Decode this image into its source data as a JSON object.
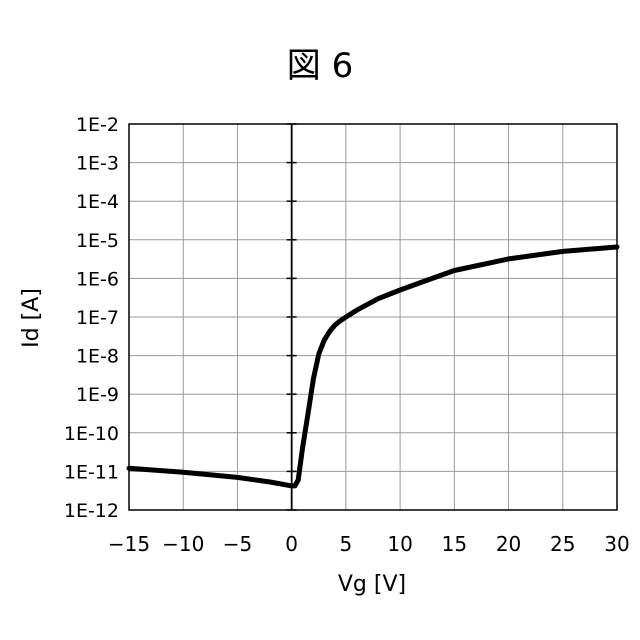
{
  "figure_label": "図 6",
  "chart_data": {
    "type": "line",
    "title": "図 6",
    "xlabel": "Vg [V]",
    "ylabel": "Id [A]",
    "xlim": [
      -15,
      30
    ],
    "ylim_exponent": [
      -12,
      -2
    ],
    "y_scale": "log",
    "grid": true,
    "x_ticks": [
      "−15",
      "−10",
      "−5",
      "0",
      "5",
      "10",
      "15",
      "20",
      "25",
      "30"
    ],
    "y_ticks": [
      "1E-12",
      "1E-11",
      "1E-10",
      "1E-9",
      "1E-8",
      "1E-7",
      "1E-6",
      "1E-5",
      "1E-4",
      "1E-3",
      "1E-2"
    ],
    "series": [
      {
        "x": [
          -15,
          -10,
          -5,
          -2,
          0,
          0.3,
          0.6,
          1,
          1.5,
          2,
          2.5,
          3,
          3.5,
          4,
          4.5,
          5,
          6,
          8,
          10,
          12,
          15,
          20,
          25,
          30
        ],
        "y": [
          1.2e-11,
          9.5e-12,
          7e-12,
          5.3e-12,
          4.2e-12,
          4.2e-12,
          6e-12,
          4e-11,
          3e-10,
          2.5e-09,
          1.1e-08,
          2.5e-08,
          4.2e-08,
          6.2e-08,
          8e-08,
          1e-07,
          1.5e-07,
          3e-07,
          5e-07,
          8e-07,
          1.6e-06,
          3.2e-06,
          5e-06,
          6.5e-06
        ]
      }
    ]
  }
}
